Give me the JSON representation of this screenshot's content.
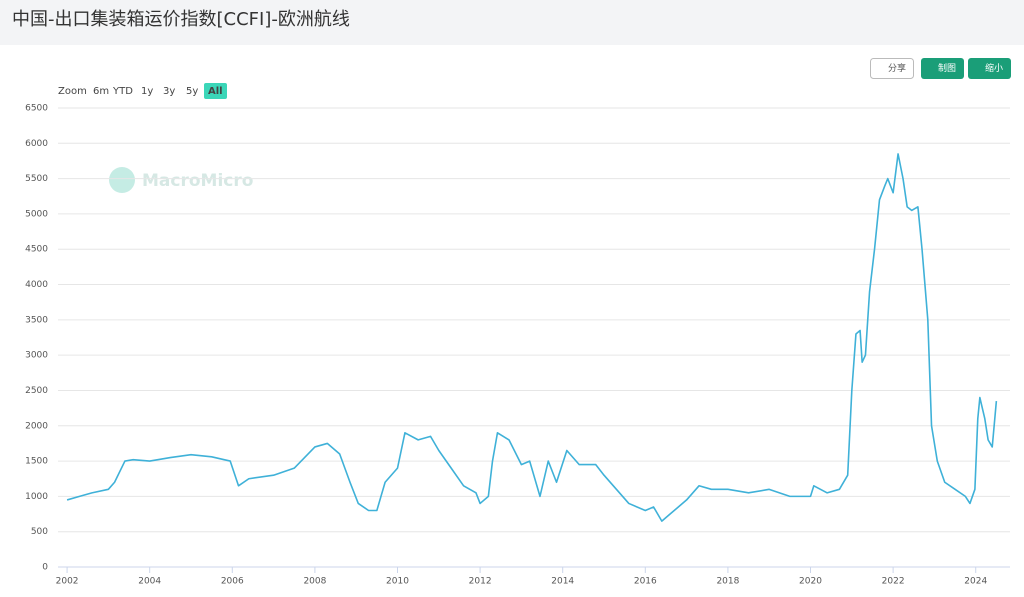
{
  "chart_data": {
    "type": "line",
    "title": "中国-出口集装箱运价指数[CCFI]-欧洲航线",
    "buttons": [
      "分享",
      "制图",
      "缩小"
    ],
    "range_selector": [
      "Zoom",
      "6m",
      "YTD",
      "1y",
      "3y",
      "5y",
      "All"
    ],
    "watermark": "MacroMicro",
    "color": "#3fb1d8",
    "grid": true,
    "xlim": [
      2001.78,
      2024.83
    ],
    "xticks": [
      2002,
      2004,
      2006,
      2008,
      2010,
      2012,
      2014,
      2016,
      2018,
      2020,
      2022,
      2024
    ],
    "ylim": [
      0,
      6500
    ],
    "yticks": [
      0,
      500,
      1000,
      1500,
      2000,
      2500,
      3000,
      3500,
      4000,
      4500,
      5000,
      5500,
      6000,
      6500
    ],
    "x": [
      2002.0,
      2002.3,
      2002.6,
      2003.0,
      2003.15,
      2003.4,
      2003.6,
      2004.0,
      2004.5,
      2005.0,
      2005.5,
      2005.95,
      2006.15,
      2006.4,
      2007.0,
      2007.5,
      2008.0,
      2008.3,
      2008.6,
      2008.85,
      2009.05,
      2009.3,
      2009.5,
      2009.7,
      2010.0,
      2010.18,
      2010.5,
      2010.8,
      2011.0,
      2011.3,
      2011.6,
      2011.9,
      2012.0,
      2012.2,
      2012.3,
      2012.42,
      2012.7,
      2013.0,
      2013.2,
      2013.45,
      2013.65,
      2013.85,
      2014.1,
      2014.4,
      2014.8,
      2015.0,
      2015.3,
      2015.6,
      2016.0,
      2016.2,
      2016.4,
      2016.6,
      2017.0,
      2017.3,
      2017.6,
      2018.0,
      2018.5,
      2019.0,
      2019.5,
      2020.0,
      2020.08,
      2020.4,
      2020.7,
      2020.9,
      2021.0,
      2021.1,
      2021.2,
      2021.25,
      2021.33,
      2021.43,
      2021.55,
      2021.67,
      2021.8,
      2021.87,
      2022.0,
      2022.12,
      2022.24,
      2022.34,
      2022.45,
      2022.6,
      2022.7,
      2022.84,
      2022.93,
      2023.07,
      2023.25,
      2023.5,
      2023.75,
      2023.86,
      2023.98,
      2024.05,
      2024.1,
      2024.22,
      2024.3,
      2024.4,
      2024.5
    ],
    "values": [
      950,
      1000,
      1050,
      1100,
      1200,
      1500,
      1520,
      1500,
      1550,
      1590,
      1560,
      1500,
      1150,
      1250,
      1300,
      1400,
      1700,
      1750,
      1600,
      1200,
      900,
      800,
      800,
      1200,
      1400,
      1900,
      1800,
      1850,
      1650,
      1400,
      1150,
      1050,
      900,
      1000,
      1500,
      1900,
      1800,
      1450,
      1500,
      1000,
      1500,
      1200,
      1650,
      1450,
      1450,
      1300,
      1100,
      900,
      800,
      850,
      650,
      750,
      950,
      1150,
      1100,
      1100,
      1050,
      1100,
      1000,
      1000,
      1150,
      1050,
      1100,
      1300,
      2500,
      3300,
      3350,
      2900,
      3000,
      3900,
      4500,
      5200,
      5400,
      5500,
      5300,
      5850,
      5500,
      5100,
      5050,
      5100,
      4500,
      3500,
      2000,
      1500,
      1200,
      1100,
      1000,
      900,
      1100,
      2100,
      2400,
      2100,
      1800,
      1700,
      2350
    ]
  }
}
